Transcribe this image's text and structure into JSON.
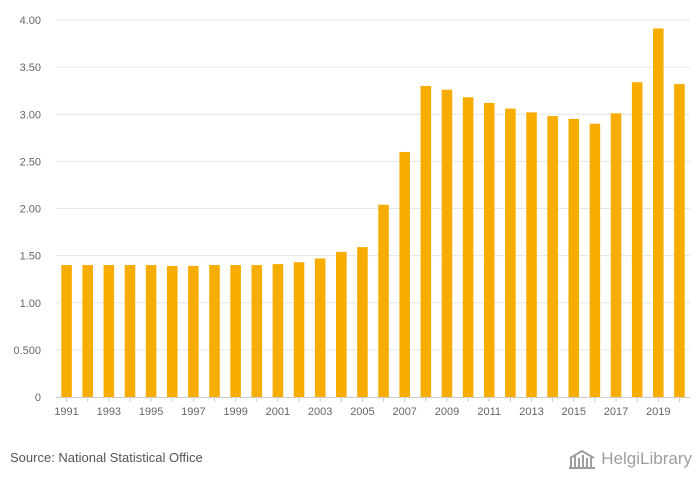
{
  "chart_data": {
    "type": "bar",
    "categories": [
      "1991",
      "1992",
      "1993",
      "1994",
      "1995",
      "1996",
      "1997",
      "1998",
      "1999",
      "2000",
      "2001",
      "2002",
      "2003",
      "2004",
      "2005",
      "2006",
      "2007",
      "2008",
      "2009",
      "2010",
      "2011",
      "2012",
      "2013",
      "2014",
      "2015",
      "2016",
      "2017",
      "2018",
      "2019",
      "2020"
    ],
    "values": [
      1.4,
      1.4,
      1.4,
      1.4,
      1.4,
      1.39,
      1.39,
      1.4,
      1.4,
      1.4,
      1.41,
      1.43,
      1.47,
      1.54,
      1.59,
      2.04,
      2.6,
      3.3,
      3.26,
      3.18,
      3.12,
      3.06,
      3.02,
      2.98,
      2.95,
      2.9,
      3.01,
      3.34,
      3.91,
      3.32
    ],
    "x_tick_labels": [
      "1991",
      "1993",
      "1995",
      "1997",
      "1999",
      "2001",
      "2003",
      "2005",
      "2007",
      "2009",
      "2011",
      "2013",
      "2015",
      "2017",
      "2019"
    ],
    "y_ticks": [
      0,
      0.5,
      1,
      1.5,
      2,
      2.5,
      3,
      3.5,
      4
    ],
    "y_tick_labels": [
      "0",
      "0.500",
      "1.00",
      "1.50",
      "2.00",
      "2.50",
      "3.00",
      "3.50",
      "4.00"
    ],
    "ylim": [
      0,
      4
    ],
    "title": "",
    "xlabel": "",
    "ylabel": "",
    "grid": true,
    "bar_color": "#f7ad00"
  },
  "footer": {
    "source": "Source: National Statistical Office",
    "logo_text": "HelgiLibrary"
  },
  "colors": {
    "grid": "#e6e6e6",
    "axis": "#cccccc",
    "tick_text": "#666666",
    "logo": "#9e9e9e"
  }
}
